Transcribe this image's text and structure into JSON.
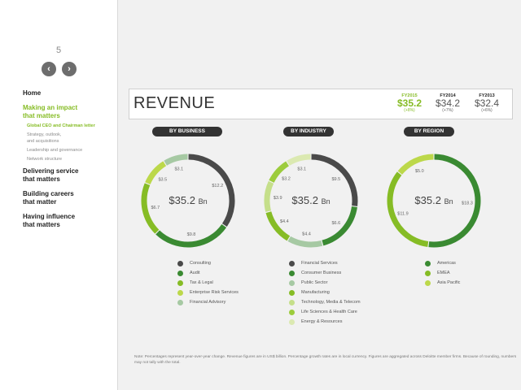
{
  "sidebar": {
    "page_number": "5",
    "prev_icon": "chevron-left-icon",
    "next_icon": "chevron-right-icon",
    "prev_glyph": "‹",
    "next_glyph": "›",
    "nav": {
      "home": "Home",
      "impact": "Making an impact\nthat matters",
      "impact_subs": [
        "Global CEO and Chairman letter",
        "Strategy, outlook,\nand acquisitions",
        "Leadership and governance",
        "Network structure"
      ],
      "service": "Delivering service\nthat matters",
      "careers": "Building careers\nthat matter",
      "influence": "Having influence\nthat matters"
    }
  },
  "header": {
    "title": "REVENUE",
    "years": [
      {
        "label": "FY2015",
        "value": "$35.2",
        "change": "(+8%)"
      },
      {
        "label": "FY2014",
        "value": "$34.2",
        "change": "(+7%)"
      },
      {
        "label": "FY2013",
        "value": "$32.4",
        "change": "(+6%)"
      }
    ]
  },
  "colors": {
    "accent": "#86bc25",
    "pill": "#333333"
  },
  "sections": [
    {
      "title": "BY BUSINESS",
      "center_value": "$35.2",
      "center_unit": "Bn",
      "segments": [
        {
          "name": "Consulting",
          "value": 12.2,
          "label": "$12.2",
          "color": "#4a4a4a"
        },
        {
          "name": "Audit",
          "value": 9.8,
          "label": "$9.8",
          "color": "#3a8a32"
        },
        {
          "name": "Tax & Legal",
          "value": 6.7,
          "label": "$6.7",
          "color": "#86bc25"
        },
        {
          "name": "Enterprise Risk Services",
          "value": 3.5,
          "label": "$3.5",
          "color": "#bcd84a"
        },
        {
          "name": "Financial Advisory",
          "value": 3.1,
          "label": "$3.1",
          "color": "#a6c9a3"
        }
      ]
    },
    {
      "title": "BY INDUSTRY",
      "center_value": "$35.2",
      "center_unit": "Bn",
      "segments": [
        {
          "name": "Financial Services",
          "value": 9.5,
          "label": "$9.5",
          "color": "#4a4a4a"
        },
        {
          "name": "Consumer Business",
          "value": 6.6,
          "label": "$6.6",
          "color": "#3a8a32"
        },
        {
          "name": "Public Sector",
          "value": 4.4,
          "label": "$4.4",
          "color": "#a6c9a3"
        },
        {
          "name": "Manufacturing",
          "value": 4.4,
          "label": "$4.4",
          "color": "#86bc25"
        },
        {
          "name": "Technology, Media & Telecom",
          "value": 3.9,
          "label": "$3.9",
          "color": "#c5df8a"
        },
        {
          "name": "Life Sciences & Health Care",
          "value": 3.2,
          "label": "$3.2",
          "color": "#9ccc3c"
        },
        {
          "name": "Energy & Resources",
          "value": 3.1,
          "label": "$3.1",
          "color": "#dbe9b1"
        }
      ]
    },
    {
      "title": "BY REGION",
      "center_value": "$35.2",
      "center_unit": "Bn",
      "segments": [
        {
          "name": "Americas",
          "value": 18.3,
          "label": "$18.3",
          "color": "#3a8a32"
        },
        {
          "name": "EMEA",
          "value": 11.9,
          "label": "$11.9",
          "color": "#86bc25"
        },
        {
          "name": "Asia Pacific",
          "value": 5.0,
          "label": "$5.0",
          "color": "#bcd84a"
        }
      ]
    }
  ],
  "note": "Note: Percentages represent year-over-year change. Revenue figures are in US$ billion. Percentage growth rates are in local currency. Figures are aggregated across Deloitte member firms. Because of rounding, numbers may not tally with the total."
}
